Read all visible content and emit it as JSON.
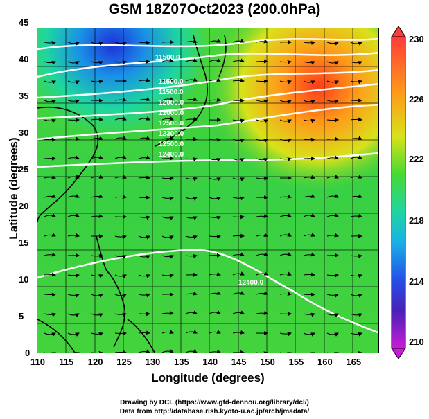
{
  "title": "GSM 18Z07Oct2023 (200.0hPa)",
  "x_axis": {
    "label": "Longitude (degrees)",
    "ticks": [
      "110",
      "115",
      "120",
      "125",
      "130",
      "135",
      "140",
      "145",
      "150",
      "155",
      "160",
      "165"
    ]
  },
  "y_axis": {
    "label": "Latitude (degrees)",
    "ticks": [
      "0",
      "5",
      "10",
      "15",
      "20",
      "25",
      "30",
      "35",
      "40",
      "45"
    ]
  },
  "colorbar": {
    "ticks": [
      "230",
      "226",
      "222",
      "218",
      "214",
      "210"
    ],
    "colors": [
      "#ff3b3b",
      "#ff9a1a",
      "#d8e21a",
      "#49d934",
      "#1ed6a0",
      "#1ab0e6",
      "#2450e8",
      "#4a20b8",
      "#c81cd6"
    ]
  },
  "contour_labels": [
    "11500.0",
    "11500.0",
    "11500.0",
    "12000.0",
    "12000.0",
    "12500.0",
    "12300.0",
    "12500.0",
    "12400.0",
    "12400.0"
  ],
  "credits": {
    "line1": "Drawing by DCL (https://www.gfd-dennou.org/library/dcl/)",
    "line2": "Data from http://database.rish.kyoto-u.ac.jp/arch/jmadata/"
  }
}
